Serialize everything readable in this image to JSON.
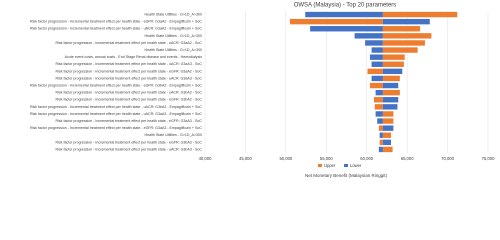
{
  "chart_data": {
    "type": "tornado",
    "title": "OWSA (Malaysia) - Top 20 parameters",
    "x_label": "Net Monetary Benefit (Malaysian Ringgit)",
    "base": 62000,
    "categories": [
      "Health State Utilities - G>1D_A>300",
      "Risk factor progression - Incremental treatment effect per health state - eGFR: G3aA2 - Empagliflozin + SoC",
      "Risk factor progression - Incremental treatment effect per health state - uACR: G3aA2 - Empagliflozin + SoC",
      "Health State Utilities - G>1D_A>300",
      "Risk factor progression - Incremental treatment effect per health state - uACR: G3aA2 - SoC",
      "Health State Utilities - G>1D_A>300",
      "Acute event costs, annual costs - End Stage Renal disease and events - Hemodialysis",
      "Risk factor progression - Incremental treatment effect per health state - uACR: G3aA3 - SoC",
      "Risk factor progression - Incremental treatment effect per health state - eGFR: G3aA2 - SoC",
      "Risk factor progression - Incremental treatment effect per health state - uACR: G3aA3 - SoC",
      "Risk factor progression - Incremental treatment effect per health state - eGFR: G3bA2 - Empagliflozin + SoC",
      "Risk factor progression - Incremental treatment effect per health state - uACR: G3bA2 - SoC",
      "Risk factor progression - Incremental treatment effect per health state - eGFR: G3bA2 - SoC",
      "Risk factor progression - Incremental treatment effect per health state - uACR: G3bA2 - Empagliflozin + SoC",
      "Risk factor progression - Incremental treatment effect per health state - uACR: G3aA3 - Empagliflozin + SoC",
      "Risk factor progression - Incremental treatment effect per health state - eGFR: G3aA3 - SoC",
      "Risk factor progression - Incremental treatment effect per health state - eGFR: G3aA3 - Empagliflozin + SoC",
      "Health State Utilities - G>1D_A>300",
      "Risk factor progression - Incremental treatment effect per health state - eGFR: G3bA3 - SoC",
      "Risk factor progression - Incremental treatment effect per health state - uACR: G3bA3 - SoC"
    ],
    "series": [
      {
        "name": "Upper",
        "color": "#ed7d31",
        "values": [
          71200,
          50500,
          66600,
          68000,
          67200,
          66300,
          64700,
          64600,
          60100,
          64100,
          60400,
          64100,
          60900,
          61000,
          63300,
          63300,
          61500,
          63000,
          61600,
          63200
        ]
      },
      {
        "name": "Lower",
        "color": "#4472c4",
        "values": [
          52400,
          67800,
          53000,
          58500,
          59800,
          60600,
          60400,
          60600,
          64400,
          60600,
          63900,
          61100,
          63900,
          63800,
          61100,
          61300,
          63300,
          61600,
          63000,
          61500
        ]
      }
    ],
    "xlim": [
      40000,
      75000
    ],
    "xticks": [
      {
        "value": 40000,
        "label": "40,000"
      },
      {
        "value": 45000,
        "label": "45,000"
      },
      {
        "value": 50000,
        "label": "50,000"
      },
      {
        "value": 55000,
        "label": "55,000"
      },
      {
        "value": 60000,
        "label": "60,000"
      },
      {
        "value": 65000,
        "label": "65,000"
      },
      {
        "value": 70000,
        "label": "70,000"
      },
      {
        "value": 75000,
        "label": "75,000"
      }
    ],
    "grid": true
  }
}
